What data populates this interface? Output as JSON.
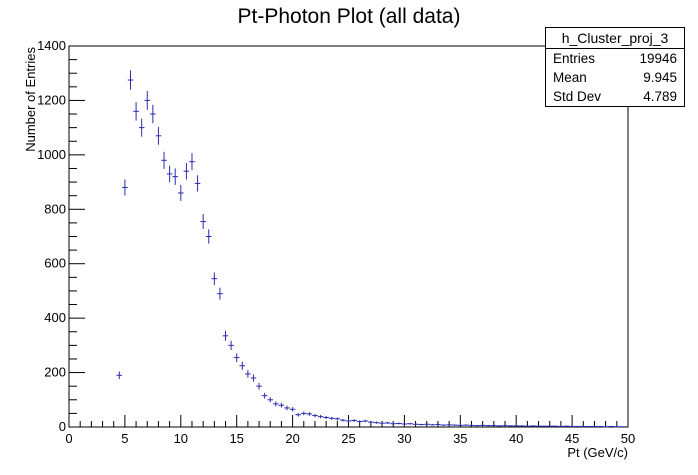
{
  "chart_data": {
    "type": "histogram-errorbars",
    "title": "Pt-Photon Plot (all data)",
    "xlabel": "Pt (GeV/c)",
    "ylabel": "Number of Entries",
    "xlim": [
      0,
      50
    ],
    "ylim": [
      0,
      1400
    ],
    "xticks": [
      0,
      5,
      10,
      15,
      20,
      25,
      30,
      35,
      40,
      45,
      50
    ],
    "yticks": [
      0,
      200,
      400,
      600,
      800,
      1000,
      1200,
      1400
    ],
    "grid": false,
    "color": "#2b2bb4",
    "bin_width": 0.5,
    "points": [
      {
        "x": 4.5,
        "y": 190
      },
      {
        "x": 5.0,
        "y": 880
      },
      {
        "x": 5.5,
        "y": 1275
      },
      {
        "x": 6.0,
        "y": 1160
      },
      {
        "x": 6.5,
        "y": 1100
      },
      {
        "x": 7.0,
        "y": 1200
      },
      {
        "x": 7.5,
        "y": 1150
      },
      {
        "x": 8.0,
        "y": 1070
      },
      {
        "x": 8.5,
        "y": 980
      },
      {
        "x": 9.0,
        "y": 930
      },
      {
        "x": 9.5,
        "y": 920
      },
      {
        "x": 10.0,
        "y": 860
      },
      {
        "x": 10.5,
        "y": 940
      },
      {
        "x": 11.0,
        "y": 975
      },
      {
        "x": 11.5,
        "y": 895
      },
      {
        "x": 12.0,
        "y": 755
      },
      {
        "x": 12.5,
        "y": 700
      },
      {
        "x": 13.0,
        "y": 545
      },
      {
        "x": 13.5,
        "y": 490
      },
      {
        "x": 14.0,
        "y": 335
      },
      {
        "x": 14.5,
        "y": 300
      },
      {
        "x": 15.0,
        "y": 255
      },
      {
        "x": 15.5,
        "y": 225
      },
      {
        "x": 16.0,
        "y": 195
      },
      {
        "x": 16.5,
        "y": 180
      },
      {
        "x": 17.0,
        "y": 150
      },
      {
        "x": 17.5,
        "y": 115
      },
      {
        "x": 18.0,
        "y": 100
      },
      {
        "x": 18.5,
        "y": 85
      },
      {
        "x": 19.0,
        "y": 80
      },
      {
        "x": 19.5,
        "y": 70
      },
      {
        "x": 20.0,
        "y": 65
      },
      {
        "x": 20.5,
        "y": 45
      },
      {
        "x": 21.0,
        "y": 50
      },
      {
        "x": 21.5,
        "y": 48
      },
      {
        "x": 22.0,
        "y": 42
      },
      {
        "x": 22.5,
        "y": 38
      },
      {
        "x": 23.0,
        "y": 35
      },
      {
        "x": 23.5,
        "y": 32
      },
      {
        "x": 24.0,
        "y": 30
      },
      {
        "x": 24.5,
        "y": 25
      },
      {
        "x": 25.0,
        "y": 22
      },
      {
        "x": 25.5,
        "y": 24
      },
      {
        "x": 26.0,
        "y": 20
      },
      {
        "x": 26.5,
        "y": 22
      },
      {
        "x": 27.0,
        "y": 18
      },
      {
        "x": 27.5,
        "y": 16
      },
      {
        "x": 28.0,
        "y": 14
      },
      {
        "x": 28.5,
        "y": 15
      },
      {
        "x": 29.0,
        "y": 12
      },
      {
        "x": 29.5,
        "y": 13
      },
      {
        "x": 30.0,
        "y": 11
      },
      {
        "x": 30.5,
        "y": 12
      },
      {
        "x": 31.0,
        "y": 10
      },
      {
        "x": 31.5,
        "y": 9
      },
      {
        "x": 32.0,
        "y": 10
      },
      {
        "x": 32.5,
        "y": 8
      },
      {
        "x": 33.0,
        "y": 9
      },
      {
        "x": 33.5,
        "y": 7
      },
      {
        "x": 34.0,
        "y": 8
      },
      {
        "x": 34.5,
        "y": 7
      },
      {
        "x": 35.0,
        "y": 6
      },
      {
        "x": 35.5,
        "y": 7
      },
      {
        "x": 36.0,
        "y": 6
      },
      {
        "x": 36.5,
        "y": 5
      },
      {
        "x": 37.0,
        "y": 6
      },
      {
        "x": 37.5,
        "y": 5
      },
      {
        "x": 38.0,
        "y": 5
      },
      {
        "x": 38.5,
        "y": 4
      },
      {
        "x": 39.0,
        "y": 5
      },
      {
        "x": 39.5,
        "y": 4
      },
      {
        "x": 40.0,
        "y": 4
      },
      {
        "x": 40.5,
        "y": 4
      },
      {
        "x": 41.0,
        "y": 3
      },
      {
        "x": 41.5,
        "y": 4
      },
      {
        "x": 42.0,
        "y": 3
      },
      {
        "x": 42.5,
        "y": 3
      },
      {
        "x": 43.0,
        "y": 3
      },
      {
        "x": 43.5,
        "y": 3
      },
      {
        "x": 44.0,
        "y": 2
      },
      {
        "x": 44.5,
        "y": 3
      },
      {
        "x": 45.0,
        "y": 2
      },
      {
        "x": 45.5,
        "y": 2
      },
      {
        "x": 46.0,
        "y": 2
      },
      {
        "x": 46.5,
        "y": 2
      },
      {
        "x": 47.0,
        "y": 2
      },
      {
        "x": 47.5,
        "y": 2
      },
      {
        "x": 48.0,
        "y": 1
      },
      {
        "x": 48.5,
        "y": 2
      },
      {
        "x": 49.0,
        "y": 1
      },
      {
        "x": 49.5,
        "y": 1
      }
    ],
    "stats": {
      "name": "h_Cluster_proj_3",
      "rows": [
        {
          "label": "Entries",
          "value": "19946"
        },
        {
          "label": "Mean",
          "value": "9.945"
        },
        {
          "label": "Std Dev",
          "value": "4.789"
        }
      ]
    }
  }
}
